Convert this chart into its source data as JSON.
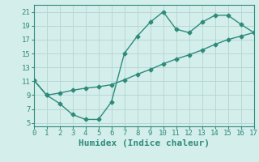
{
  "xlabel": "Humidex (Indice chaleur)",
  "line1_x": [
    0,
    1,
    2,
    3,
    4,
    5,
    6,
    7,
    8,
    9,
    10,
    11,
    12,
    13,
    14,
    15,
    16,
    17
  ],
  "line1_y": [
    11.2,
    9.0,
    7.8,
    6.2,
    5.5,
    5.5,
    8.0,
    15.0,
    17.5,
    19.5,
    21.0,
    18.5,
    18.0,
    19.5,
    20.5,
    20.5,
    19.2,
    18.0
  ],
  "line2_x": [
    0,
    1,
    2,
    3,
    4,
    5,
    6,
    7,
    8,
    9,
    10,
    11,
    12,
    13,
    14,
    15,
    16,
    17
  ],
  "line2_y": [
    11.2,
    9.0,
    9.3,
    9.7,
    10.0,
    10.2,
    10.5,
    11.2,
    12.0,
    12.7,
    13.5,
    14.2,
    14.8,
    15.5,
    16.3,
    17.0,
    17.5,
    18.0
  ],
  "line_color": "#2e8b7a",
  "bg_color": "#d4eeec",
  "grid_color": "#b8d8d4",
  "xlim": [
    0,
    17
  ],
  "ylim": [
    4.5,
    22
  ],
  "xticks": [
    0,
    1,
    2,
    3,
    4,
    5,
    6,
    7,
    8,
    9,
    10,
    11,
    12,
    13,
    14,
    15,
    16,
    17
  ],
  "yticks": [
    5,
    7,
    9,
    11,
    13,
    15,
    17,
    19,
    21
  ],
  "marker": "D",
  "markersize": 2.5,
  "linewidth": 1.0,
  "xlabel_fontsize": 8,
  "tick_fontsize": 6.5
}
